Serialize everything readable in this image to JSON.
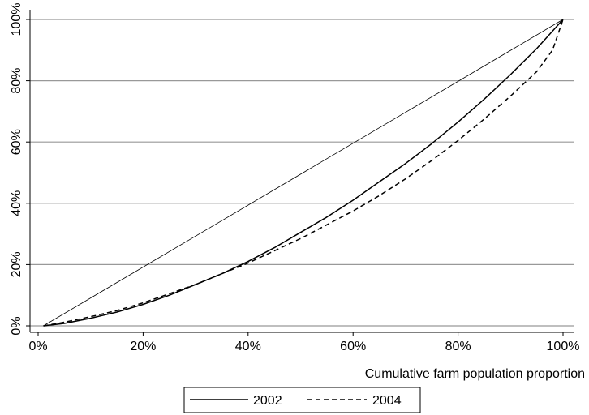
{
  "chart_data": {
    "type": "line",
    "title": "",
    "xlabel": "Cumulative farm population proportion",
    "ylabel": "",
    "xlim": [
      0,
      100
    ],
    "ylim": [
      0,
      100
    ],
    "x_ticks": [
      "0%",
      "20%",
      "40%",
      "60%",
      "80%",
      "100%"
    ],
    "y_ticks": [
      "0%",
      "20%",
      "40%",
      "60%",
      "80%",
      "100%"
    ],
    "grid": "horizontal",
    "legend_position": "bottom",
    "reference_line": {
      "x": [
        1,
        100
      ],
      "y": [
        0,
        100
      ]
    },
    "series": [
      {
        "name": "2002",
        "style": "solid",
        "color": "#000000",
        "x": [
          1,
          5,
          10,
          15,
          20,
          25,
          30,
          35,
          40,
          45,
          50,
          55,
          60,
          65,
          70,
          75,
          80,
          85,
          90,
          95,
          100
        ],
        "y": [
          0,
          0.8,
          2.5,
          4.5,
          7,
          10,
          13.5,
          17,
          21,
          25.5,
          30.5,
          35.5,
          41,
          47,
          53,
          59.5,
          66.5,
          74,
          82,
          90.5,
          100
        ]
      },
      {
        "name": "2004",
        "style": "dashed",
        "color": "#000000",
        "x": [
          1,
          5,
          10,
          15,
          20,
          25,
          30,
          35,
          40,
          45,
          50,
          55,
          60,
          65,
          70,
          75,
          80,
          85,
          90,
          95,
          98,
          100
        ],
        "y": [
          0,
          1.2,
          3,
          5,
          7.5,
          10.5,
          13.5,
          17,
          20.5,
          24.5,
          28.5,
          33,
          37.5,
          42.5,
          48,
          54,
          60.5,
          67.5,
          75,
          83,
          90,
          100
        ]
      }
    ]
  }
}
